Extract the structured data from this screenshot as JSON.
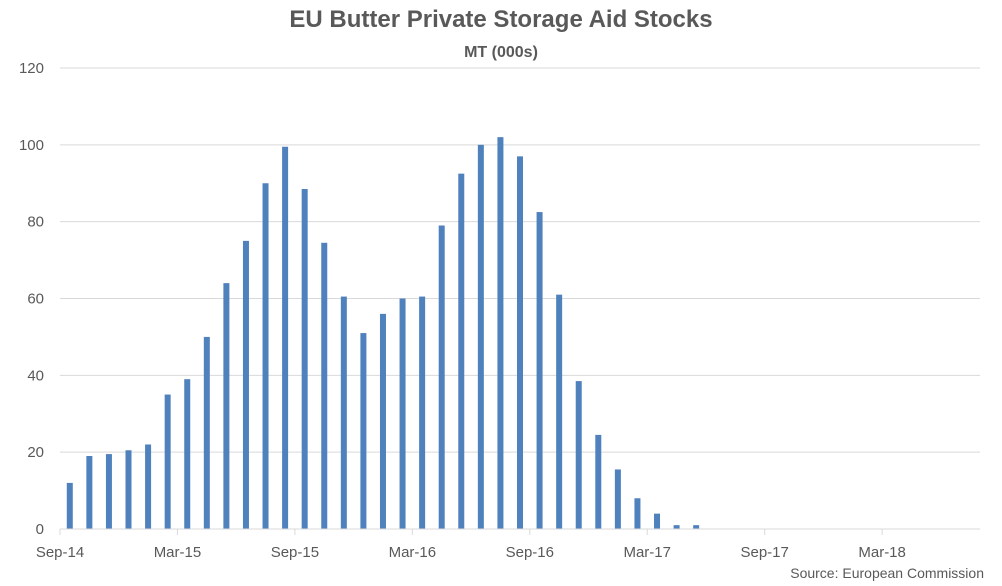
{
  "chart_data": {
    "type": "bar",
    "title": "EU Butter Private Storage Aid Stocks",
    "subtitle": "MT (000s)",
    "xlabel": "",
    "ylabel": "",
    "ylim": [
      0,
      120
    ],
    "yticks": [
      0,
      20,
      40,
      60,
      80,
      100,
      120
    ],
    "grid": true,
    "legend": "none",
    "source": "Source: European Commission",
    "x_tick_labels": [
      "Sep-14",
      "Mar-15",
      "Sep-15",
      "Mar-16",
      "Sep-16",
      "Mar-17",
      "Sep-17",
      "Mar-18"
    ],
    "categories": [
      "Sep-14",
      "Oct-14",
      "Nov-14",
      "Dec-14",
      "Jan-15",
      "Feb-15",
      "Mar-15",
      "Apr-15",
      "May-15",
      "Jun-15",
      "Jul-15",
      "Aug-15",
      "Sep-15",
      "Oct-15",
      "Nov-15",
      "Dec-15",
      "Jan-16",
      "Feb-16",
      "Mar-16",
      "Apr-16",
      "May-16",
      "Jun-16",
      "Jul-16",
      "Aug-16",
      "Sep-16",
      "Oct-16",
      "Nov-16",
      "Dec-16",
      "Jan-17",
      "Feb-17",
      "Mar-17",
      "Apr-17",
      "May-17",
      "Jun-17",
      "Jul-17",
      "Aug-17",
      "Sep-17",
      "Oct-17",
      "Nov-17",
      "Dec-17",
      "Jan-18",
      "Feb-18",
      "Mar-18",
      "Apr-18",
      "May-18",
      "Jun-18",
      "Jul-18"
    ],
    "values": [
      12,
      19,
      19.5,
      20.5,
      22,
      35,
      39,
      50,
      64,
      75,
      90,
      99.5,
      88.5,
      74.5,
      60.5,
      51,
      56,
      60,
      60.5,
      79,
      92.5,
      100,
      102,
      97,
      82.5,
      61,
      38.5,
      24.5,
      15.5,
      8,
      4,
      1,
      1,
      0,
      0,
      0,
      0,
      0,
      0,
      0,
      0,
      0,
      0,
      0,
      0,
      0,
      0
    ],
    "bar_color": "#4F81BD",
    "grid_color": "#D9D9D9"
  }
}
